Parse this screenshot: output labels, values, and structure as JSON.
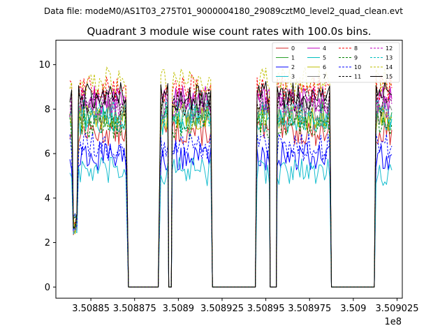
{
  "figure": {
    "suptitle": "Data file: modeM0/AS1T03_275T01_9000004180_29089cztM0_level2_quad_clean.evt"
  },
  "chart_data": {
    "type": "line",
    "title": "Quadrant 3 module wise count rates with 100.0s bins.",
    "xlabel": "",
    "ylabel": "",
    "x_offset_label": "1e8",
    "xlim": [
      3.50883,
      3.509028
    ],
    "ylim": [
      -0.5,
      11.1
    ],
    "xticks": [
      3.50885,
      3.508875,
      3.5089,
      3.508925,
      3.50895,
      3.508975,
      3.509,
      3.509025
    ],
    "xtick_labels": [
      "3.50885",
      "3.508875",
      "3.5089",
      "3.508925",
      "3.50895",
      "3.508975",
      "3.509",
      "3.509025"
    ],
    "yticks": [
      0,
      2,
      4,
      6,
      8,
      10
    ],
    "ytick_labels": [
      "0",
      "2",
      "4",
      "6",
      "8",
      "10"
    ],
    "grid": false,
    "legend_position": "top-right",
    "segments": [
      {
        "on": [
          3.508838,
          3.5088705
        ],
        "off": [
          3.5088715,
          3.5088885
        ]
      },
      {
        "on": [
          3.50889,
          3.508894
        ],
        "off": [
          3.5088945,
          3.508896
        ]
      },
      {
        "on": [
          3.5088965,
          3.508919
        ],
        "off": [
          3.5089195,
          3.508944
        ]
      },
      {
        "on": [
          3.508945,
          3.508952
        ],
        "off": [
          3.5089525,
          3.508956
        ]
      },
      {
        "on": [
          3.5089565,
          3.508987
        ],
        "off": [
          3.5089875,
          3.509012
        ]
      },
      {
        "on": [
          3.509013,
          3.509022
        ]
      }
    ],
    "series": [
      {
        "name": "0",
        "color": "#d62728",
        "dashed": false,
        "level": 7.0
      },
      {
        "name": "1",
        "color": "#2ca02c",
        "dashed": false,
        "level": 7.8
      },
      {
        "name": "2",
        "color": "#0000ff",
        "dashed": false,
        "level": 5.9
      },
      {
        "name": "3",
        "color": "#17becf",
        "dashed": false,
        "level": 5.2
      },
      {
        "name": "4",
        "color": "#bf00bf",
        "dashed": false,
        "level": 8.4
      },
      {
        "name": "5",
        "color": "#00bfbf",
        "dashed": false,
        "level": 7.5
      },
      {
        "name": "6",
        "color": "#bfbf00",
        "dashed": false,
        "level": 7.6
      },
      {
        "name": "7",
        "color": "#808080",
        "dashed": false,
        "level": 7.9
      },
      {
        "name": "8",
        "color": "#ff0000",
        "dashed": true,
        "level": 8.9
      },
      {
        "name": "9",
        "color": "#008000",
        "dashed": true,
        "level": 7.3
      },
      {
        "name": "10",
        "color": "#0000ff",
        "dashed": true,
        "level": 6.3
      },
      {
        "name": "11",
        "color": "#000000",
        "dashed": true,
        "level": 8.3
      },
      {
        "name": "12",
        "color": "#bf00bf",
        "dashed": true,
        "level": 8.2
      },
      {
        "name": "13",
        "color": "#00bfbf",
        "dashed": true,
        "level": 7.8
      },
      {
        "name": "14",
        "color": "#bfbf00",
        "dashed": true,
        "level": 9.3
      },
      {
        "name": "15",
        "color": "#000000",
        "dashed": false,
        "level": 8.6
      }
    ]
  }
}
